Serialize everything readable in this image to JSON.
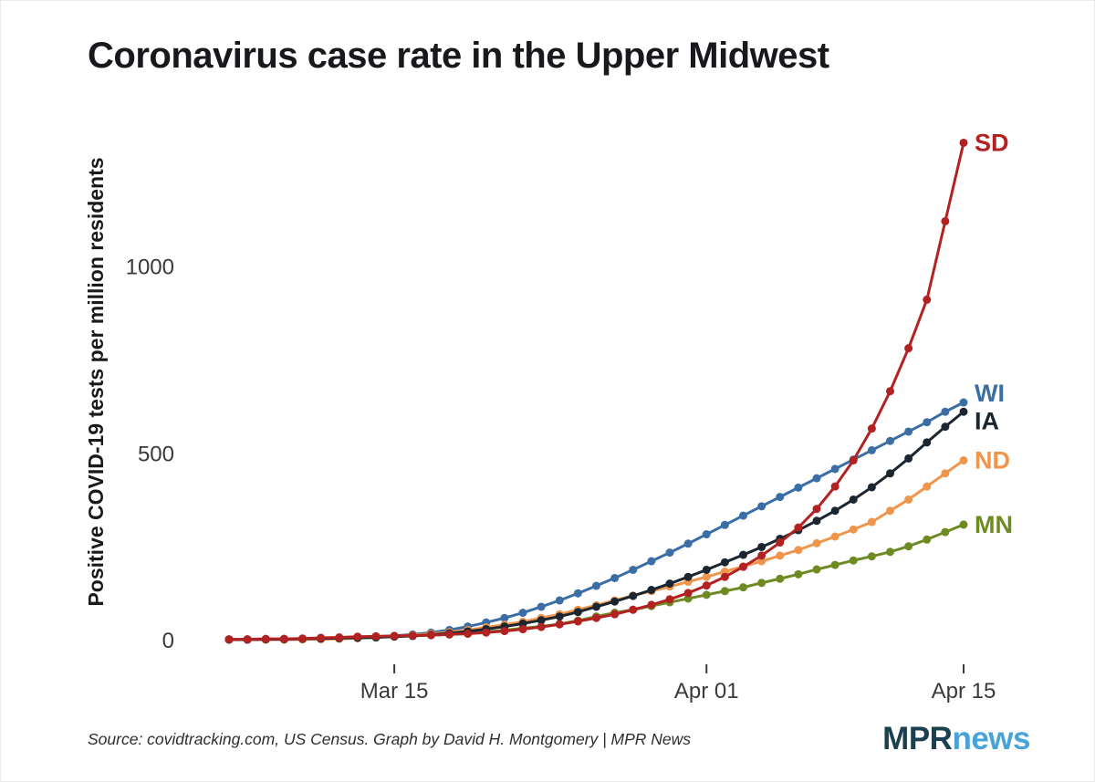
{
  "title": "Coronavirus case rate in the Upper Midwest",
  "chart_data": {
    "type": "line",
    "title": "Coronavirus case rate in the Upper Midwest",
    "xlabel": "",
    "ylabel": "Positive COVID-19 tests per million residents",
    "ylim": [
      0,
      1380
    ],
    "yticks": [
      0,
      500,
      1000
    ],
    "grid": false,
    "marker": "circle",
    "legend_position": "end-of-line-labels",
    "x_dates": [
      "Mar 06",
      "Mar 07",
      "Mar 08",
      "Mar 09",
      "Mar 10",
      "Mar 11",
      "Mar 12",
      "Mar 13",
      "Mar 14",
      "Mar 15",
      "Mar 16",
      "Mar 17",
      "Mar 18",
      "Mar 19",
      "Mar 20",
      "Mar 21",
      "Mar 22",
      "Mar 23",
      "Mar 24",
      "Mar 25",
      "Mar 26",
      "Mar 27",
      "Mar 28",
      "Mar 29",
      "Mar 30",
      "Mar 31",
      "Apr 01",
      "Apr 02",
      "Apr 03",
      "Apr 04",
      "Apr 05",
      "Apr 06",
      "Apr 07",
      "Apr 08",
      "Apr 09",
      "Apr 10",
      "Apr 11",
      "Apr 12",
      "Apr 13",
      "Apr 14",
      "Apr 15"
    ],
    "xticks": [
      {
        "label": "Mar 15",
        "index": 9
      },
      {
        "label": "Apr 01",
        "index": 26
      },
      {
        "label": "Apr 15",
        "index": 40
      }
    ],
    "series": [
      {
        "name": "WI",
        "color": "#3a6ea5",
        "values": [
          1,
          1,
          1,
          2,
          2,
          3,
          4,
          6,
          8,
          10,
          14,
          19,
          26,
          35,
          46,
          58,
          72,
          88,
          105,
          124,
          144,
          165,
          187,
          210,
          233,
          257,
          282,
          307,
          332,
          357,
          382,
          407,
          432,
          457,
          482,
          507,
          532,
          557,
          582,
          610,
          635
        ]
      },
      {
        "name": "MN",
        "color": "#6e8b23",
        "values": [
          0,
          0,
          0,
          1,
          1,
          2,
          3,
          4,
          6,
          9,
          10,
          12,
          14,
          16,
          21,
          25,
          31,
          35,
          42,
          51,
          62,
          72,
          80,
          90,
          100,
          110,
          120,
          130,
          140,
          152,
          163,
          175,
          188,
          200,
          212,
          223,
          235,
          250,
          268,
          288,
          308
        ]
      },
      {
        "name": "ND",
        "color": "#f0954c",
        "values": [
          0,
          0,
          0,
          0,
          1,
          1,
          2,
          4,
          7,
          9,
          12,
          16,
          20,
          26,
          33,
          40,
          48,
          58,
          68,
          80,
          92,
          105,
          118,
          130,
          142,
          155,
          168,
          182,
          196,
          210,
          225,
          240,
          258,
          276,
          295,
          315,
          345,
          375,
          410,
          445,
          480
        ]
      },
      {
        "name": "IA",
        "color": "#1b2631",
        "values": [
          0,
          0,
          1,
          1,
          2,
          3,
          4,
          5,
          6,
          8,
          10,
          13,
          17,
          22,
          28,
          35,
          43,
          52,
          62,
          74,
          88,
          102,
          117,
          133,
          150,
          168,
          187,
          207,
          227,
          248,
          270,
          293,
          318,
          345,
          375,
          408,
          445,
          485,
          528,
          570,
          610
        ]
      },
      {
        "name": "SD",
        "color": "#b22222",
        "values": [
          1,
          1,
          2,
          2,
          3,
          5,
          6,
          8,
          9,
          10,
          11,
          12,
          14,
          16,
          19,
          23,
          28,
          34,
          41,
          49,
          58,
          68,
          80,
          93,
          108,
          125,
          145,
          168,
          195,
          225,
          260,
          300,
          350,
          410,
          480,
          565,
          665,
          780,
          910,
          1120,
          1330
        ]
      }
    ],
    "label_offsets": {
      "WI": -10,
      "IA": 10,
      "SD": 0,
      "ND": 0,
      "MN": 0
    }
  },
  "footer": {
    "source": "Source: covidtracking.com, US Census. Graph by David H. Montgomery | MPR News",
    "logo": {
      "part1": "MPR",
      "part2": "news",
      "color1": "#1b4050",
      "color2": "#4aa3d8"
    }
  }
}
